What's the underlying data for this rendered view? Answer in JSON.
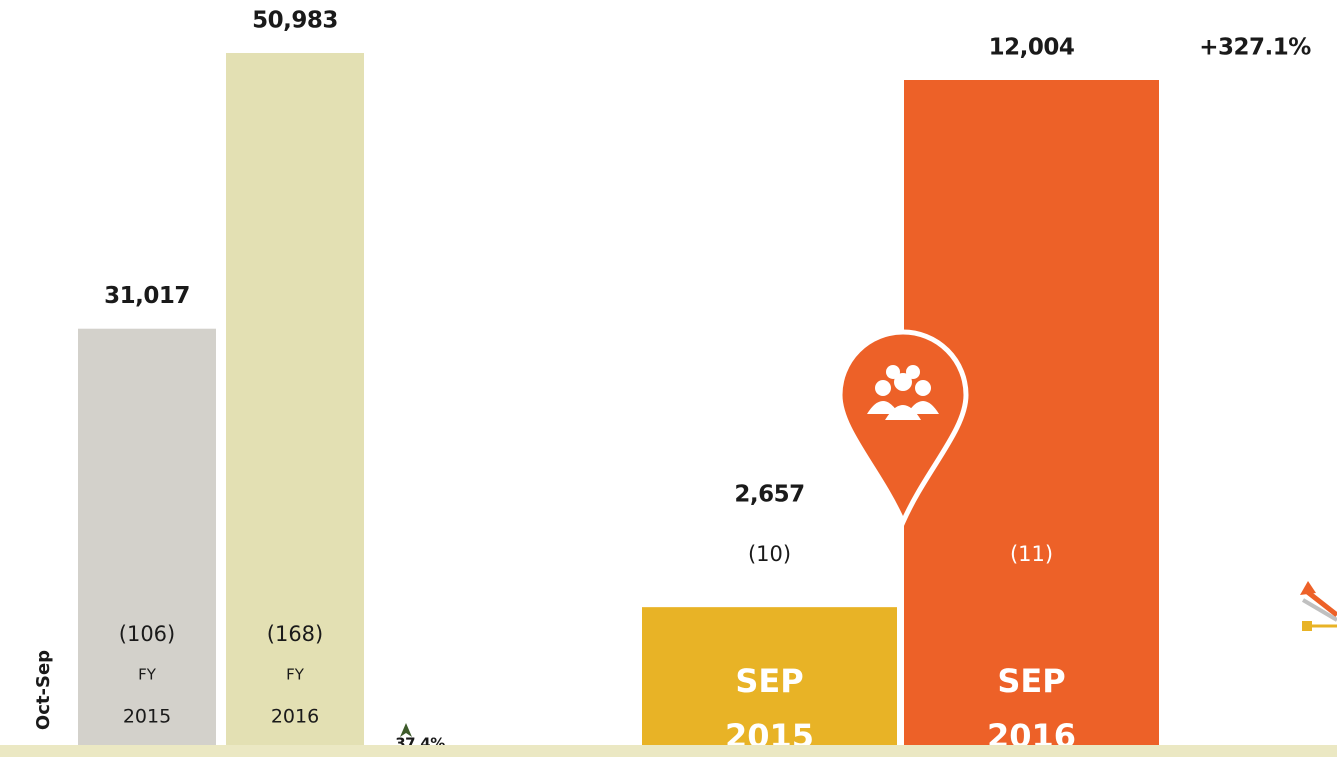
{
  "chart_data": [
    {
      "type": "bar",
      "axis_label": "Oct-Sep",
      "categories": [
        [
          "FY",
          "2015"
        ],
        [
          "FY",
          "2016"
        ]
      ],
      "values": [
        31017,
        50983
      ],
      "value_labels": [
        "31,017",
        "50,983"
      ],
      "sublabels": [
        "(106)",
        "(168)"
      ],
      "colors": [
        "#d3d1cb",
        "#e3e0b3"
      ],
      "annotation": "37.4%"
    },
    {
      "type": "bar",
      "categories": [
        [
          "SEP",
          "2015"
        ],
        [
          "SEP",
          "2016"
        ]
      ],
      "values": [
        2657,
        12004
      ],
      "value_labels": [
        "2,657",
        "12,004"
      ],
      "sublabels": [
        "(10)",
        "(11)"
      ],
      "colors": [
        "#e8b326",
        "#ed6128"
      ],
      "annotation": "+327.1%"
    }
  ]
}
